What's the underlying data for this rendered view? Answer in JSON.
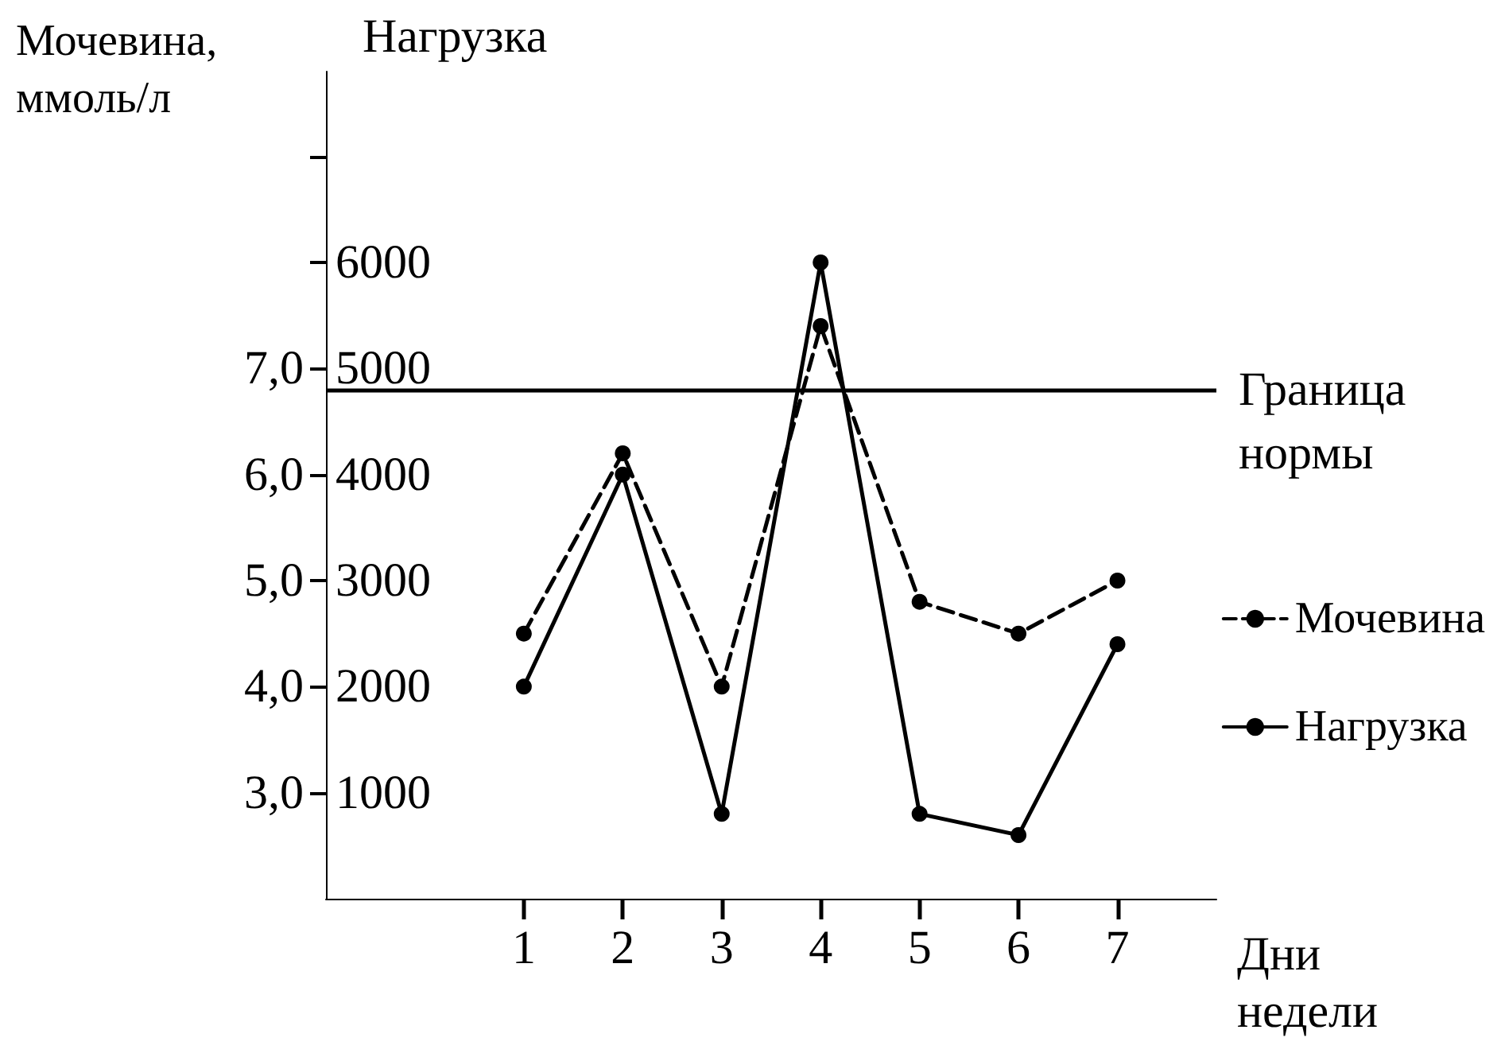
{
  "chart_data": {
    "type": "line",
    "ylabel": "Нагрузка",
    "y2label": "Мочевина, ммоль/л",
    "xlabel": "Дни недели",
    "x": [
      1,
      2,
      3,
      4,
      5,
      6,
      7
    ],
    "xlim": [
      -1,
      8
    ],
    "xticks": [
      1,
      2,
      3,
      4,
      5,
      6,
      7
    ],
    "ylim": [
      0,
      7800
    ],
    "yticks": [
      1000,
      2000,
      3000,
      4000,
      5000,
      6000,
      {
        "value": 7000,
        "label": null
      }
    ],
    "y2lim": [
      2,
      9.8
    ],
    "y2ticks": [
      {
        "value": 3,
        "label": "3,0"
      },
      {
        "value": 4,
        "label": "4,0"
      },
      {
        "value": 5,
        "label": "5,0"
      },
      {
        "value": 6,
        "label": "6,0"
      },
      {
        "value": 7,
        "label": "7,0"
      }
    ],
    "series": [
      {
        "name": "Мочевина",
        "color": "#000000",
        "axis": "y2",
        "line_style": "dashed",
        "values": [
          4.5,
          6.2,
          4.0,
          7.4,
          4.8,
          4.5,
          5.0
        ]
      },
      {
        "name": "Нагрузка",
        "color": "#000000",
        "line_style": "solid",
        "values": [
          2000,
          4000,
          800,
          6000,
          800,
          600,
          2400
        ]
      }
    ],
    "ref_lines": [
      {
        "axis": "y",
        "value": 4800,
        "label": "Граница нормы",
        "color": "#000000",
        "line_style": "solid"
      }
    ],
    "marker": "circle",
    "grid": false,
    "legend": "right"
  }
}
